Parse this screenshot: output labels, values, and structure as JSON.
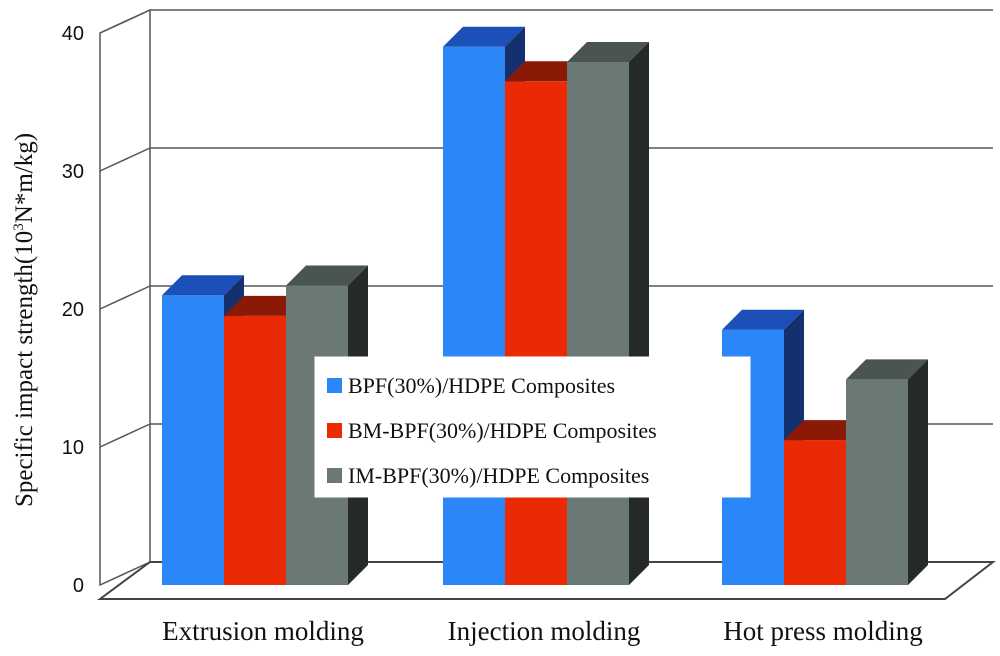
{
  "chart_data": {
    "type": "bar",
    "style": "3d-clustered-column",
    "title": "",
    "xlabel": "",
    "ylabel_main": "Specific impact strength(10",
    "ylabel_sup": "3",
    "ylabel_rest": "N*m/kg)",
    "ylim": [
      0,
      40
    ],
    "yticks": [
      0,
      10,
      20,
      30,
      40
    ],
    "categories": [
      "Extrusion molding",
      "Injection molding",
      "Hot press molding"
    ],
    "series": [
      {
        "name": "BPF(30%)/HDPE Composites",
        "values": [
          21,
          39,
          18.5
        ],
        "color": "#2b86f7",
        "top_color": "#1d4fb8",
        "side_color": "#15306e"
      },
      {
        "name": "BM-BPF(30%)/HDPE Composites",
        "values": [
          19.5,
          36.5,
          10.5
        ],
        "color": "#ea2a05",
        "top_color": "#8a1a06",
        "side_color": "#6b1405"
      },
      {
        "name": "IM-BPF(30%)/HDPE Composites",
        "values": [
          21.7,
          37.9,
          14.9
        ],
        "color": "#6a7876",
        "top_color": "#4a5553",
        "side_color": "#252a29"
      }
    ],
    "legend_position": "center",
    "grid": true
  }
}
